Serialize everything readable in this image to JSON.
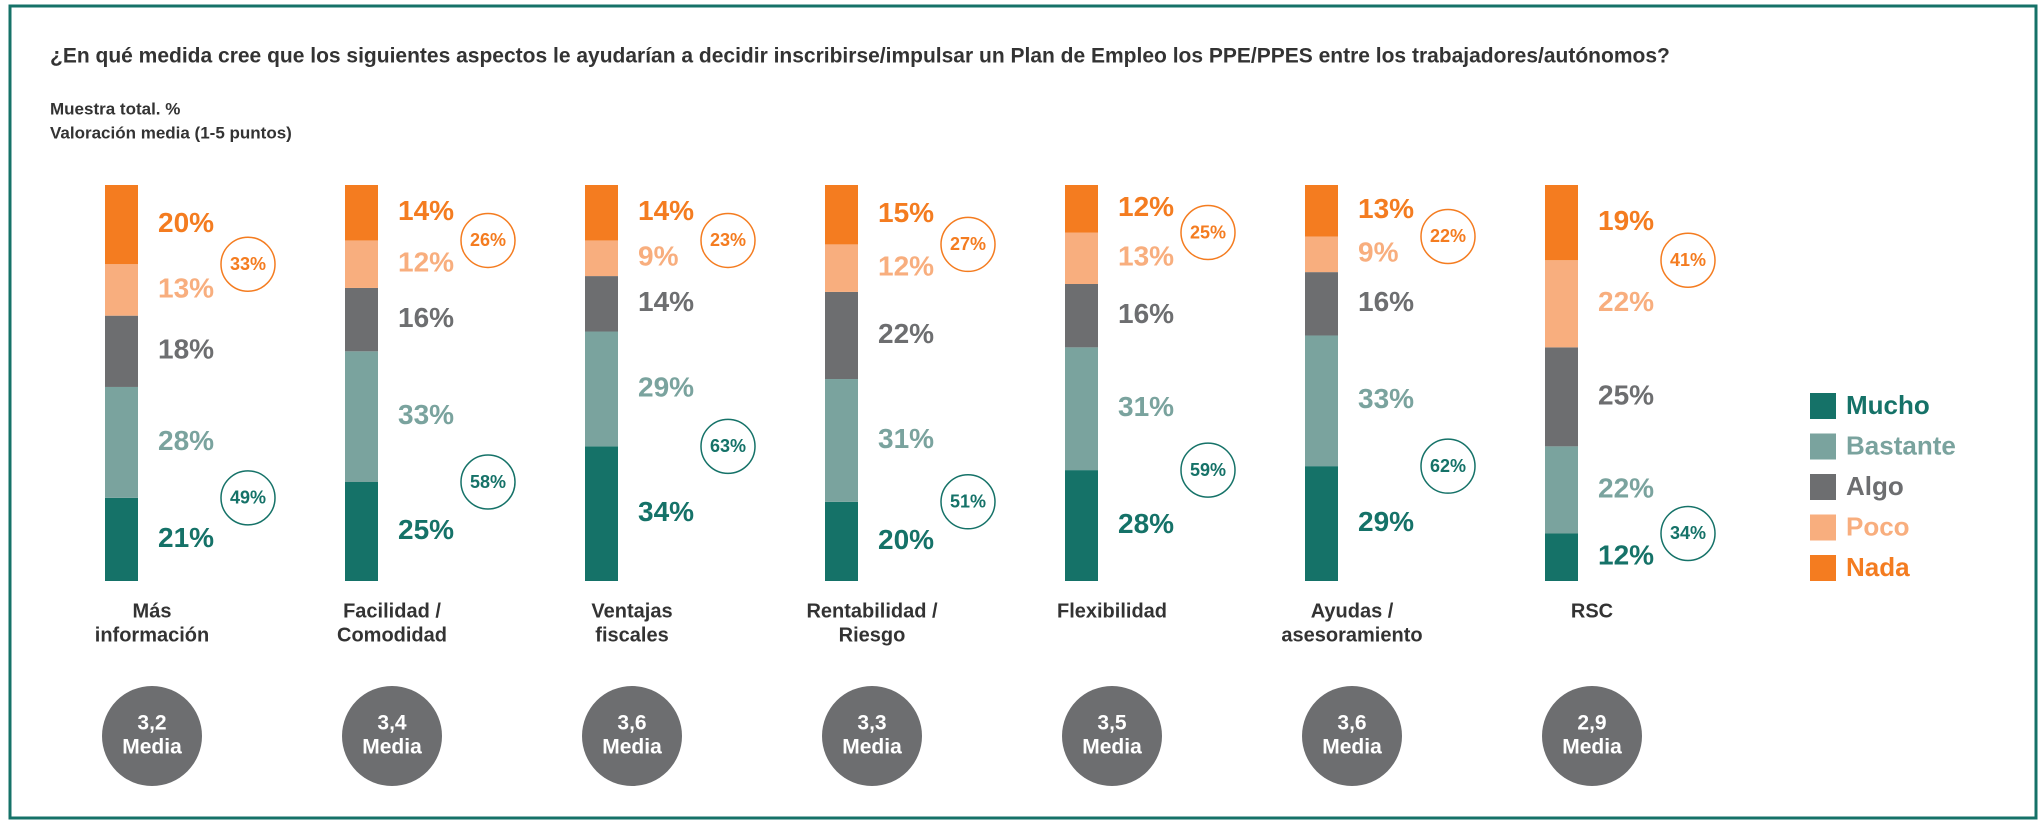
{
  "chart_data": {
    "type": "bar",
    "stacked": true,
    "title": "¿En qué medida cree que los siguientes aspectos le ayudarían a decidir inscribirse/impulsar un Plan de Empleo los PPE/PPES entre los trabajadores/autónomos?",
    "subtitle": [
      "Muestra total. %",
      "Valoración media (1-5 puntos)"
    ],
    "categories": [
      [
        "Más",
        "información"
      ],
      [
        "Facilidad /",
        "Comodidad"
      ],
      [
        "Ventajas",
        "fiscales"
      ],
      [
        "Rentabilidad /",
        "Riesgo"
      ],
      [
        "Flexibilidad"
      ],
      [
        "Ayudas /",
        "asesoramiento"
      ],
      [
        "RSC"
      ]
    ],
    "ylim": [
      0,
      100
    ],
    "series": [
      {
        "name": "Mucho",
        "color": "#157268",
        "values": [
          21,
          25,
          34,
          20,
          28,
          29,
          12
        ],
        "value_labels": [
          "21%",
          "25%",
          "34%",
          "20%",
          "28%",
          "29%",
          "12%"
        ]
      },
      {
        "name": "Bastante",
        "color": "#7aa39e",
        "values": [
          28,
          33,
          29,
          31,
          31,
          33,
          22
        ],
        "value_labels": [
          "28%",
          "33%",
          "29%",
          "31%",
          "31%",
          "33%",
          "22%"
        ]
      },
      {
        "name": "Algo",
        "color": "#6d6e70",
        "values": [
          18,
          16,
          14,
          22,
          16,
          16,
          25
        ],
        "value_labels": [
          "18%",
          "16%",
          "14%",
          "22%",
          "16%",
          "16%",
          "25%"
        ]
      },
      {
        "name": "Poco",
        "color": "#f8ae7e",
        "values": [
          13,
          12,
          9,
          12,
          13,
          9,
          22
        ],
        "value_labels": [
          "13%",
          "12%",
          "9%",
          "12%",
          "13%",
          "9%",
          "22%"
        ]
      },
      {
        "name": "Nada",
        "color": "#f47c20",
        "values": [
          20,
          14,
          14,
          15,
          12,
          13,
          19
        ],
        "value_labels": [
          "20%",
          "14%",
          "14%",
          "15%",
          "12%",
          "13%",
          "19%"
        ]
      }
    ],
    "top_two": {
      "color": "#157268",
      "values": [
        49,
        58,
        63,
        51,
        59,
        62,
        34
      ],
      "value_labels": [
        "49%",
        "58%",
        "63%",
        "51%",
        "59%",
        "62%",
        "34%"
      ]
    },
    "bottom_two": {
      "color": "#f47c20",
      "values": [
        33,
        26,
        23,
        27,
        25,
        22,
        41
      ],
      "value_labels": [
        "33%",
        "26%",
        "23%",
        "27%",
        "25%",
        "22%",
        "41%"
      ]
    },
    "media": {
      "label": "Media",
      "color": "#6d6e70",
      "values": [
        3.2,
        3.4,
        3.6,
        3.3,
        3.5,
        3.6,
        2.9
      ],
      "value_labels": [
        "3,2",
        "3,4",
        "3,6",
        "3,3",
        "3,5",
        "3,6",
        "2,9"
      ]
    },
    "legend": "right"
  }
}
